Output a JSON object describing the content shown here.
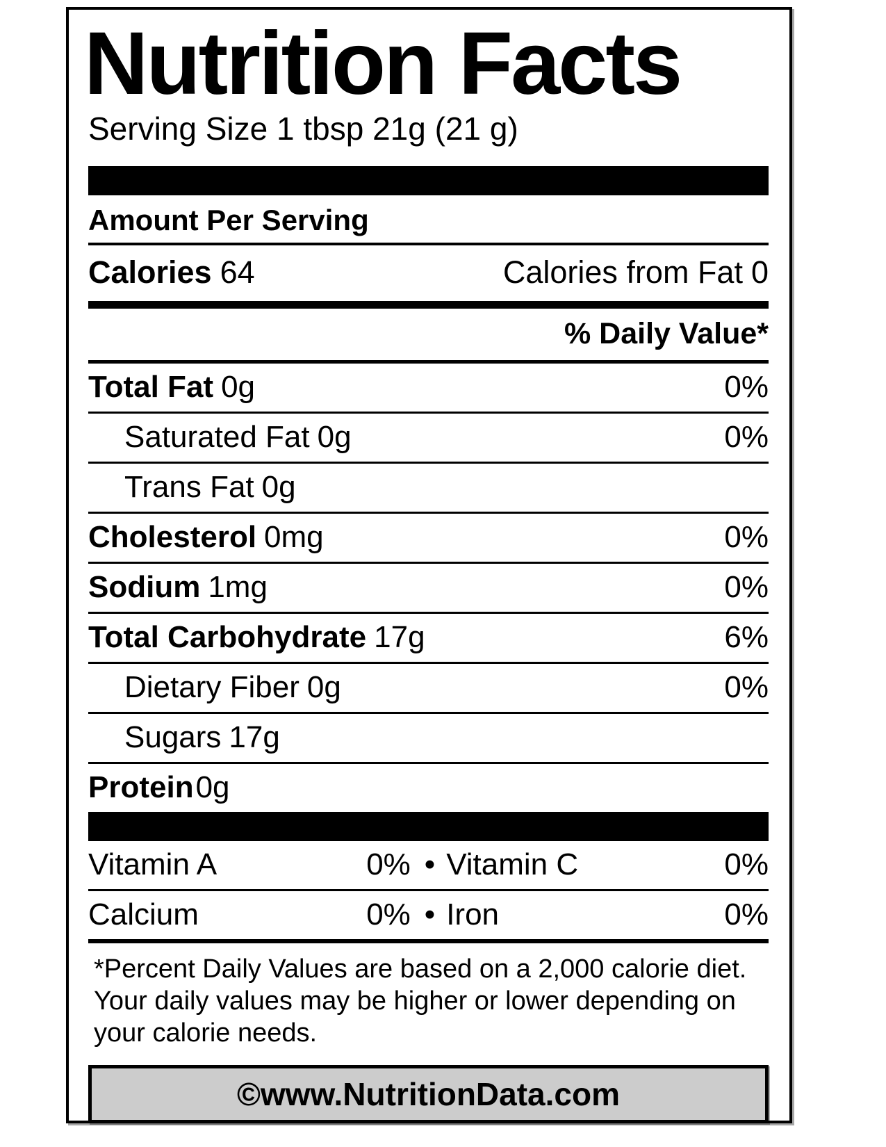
{
  "label": {
    "title": "Nutrition Facts",
    "serving_size": "Serving Size 1 tbsp 21g (21 g)",
    "amount_per_serving": "Amount Per Serving",
    "calories": {
      "label": "Calories",
      "value": "64",
      "from_fat_label": "Calories from Fat",
      "from_fat_value": "0"
    },
    "daily_value_header": "% Daily Value*",
    "nutrients": [
      {
        "name": "Total Fat",
        "amount": "0g",
        "dv": "0%",
        "bold": true,
        "indent": false
      },
      {
        "name": "Saturated Fat",
        "amount": "0g",
        "dv": "0%",
        "bold": false,
        "indent": true
      },
      {
        "name": "Trans Fat",
        "amount": "0g",
        "dv": "",
        "bold": false,
        "indent": true
      },
      {
        "name": "Cholesterol",
        "amount": "0mg",
        "dv": "0%",
        "bold": true,
        "indent": false
      },
      {
        "name": "Sodium",
        "amount": "1mg",
        "dv": "0%",
        "bold": true,
        "indent": false
      },
      {
        "name": "Total Carbohydrate",
        "amount": "17g",
        "dv": "6%",
        "bold": true,
        "indent": false
      },
      {
        "name": "Dietary Fiber",
        "amount": "0g",
        "dv": "0%",
        "bold": false,
        "indent": true
      },
      {
        "name": "Sugars",
        "amount": "17g",
        "dv": "",
        "bold": false,
        "indent": true
      },
      {
        "name": "Protein",
        "amount": "0g",
        "dv": "",
        "bold": true,
        "indent": false,
        "tight": true
      }
    ],
    "bullet": "•",
    "micronutrients": [
      {
        "left_name": "Vitamin A",
        "left_value": "0%",
        "right_name": "Vitamin C",
        "right_value": "0%"
      },
      {
        "left_name": "Calcium",
        "left_value": "0%",
        "right_name": "Iron",
        "right_value": "0%"
      }
    ],
    "footnote": "*Percent Daily Values are based on a 2,000 calorie diet. Your daily values may be higher or lower depending on your calorie needs.",
    "watermark": "©www.NutritionData.com",
    "colors": {
      "text": "#000000",
      "background": "#ffffff",
      "watermark_background": "#cccccc"
    }
  }
}
